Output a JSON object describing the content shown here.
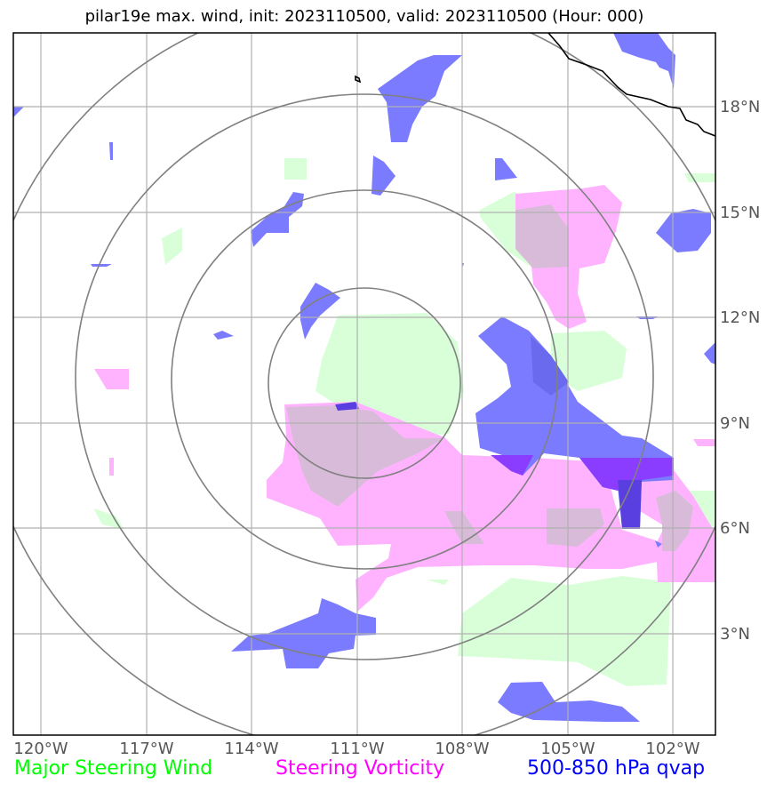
{
  "title": "pilar19e max. wind, init: 2023110500, valid: 2023110500 (Hour: 000)",
  "lon_ticks": [
    "120°W",
    "117°W",
    "114°W",
    "111°W",
    "108°W",
    "105°W",
    "102°W"
  ],
  "lat_ticks": [
    "18°N",
    "15°N",
    "12°N",
    "9°N",
    "6°N",
    "3°N"
  ],
  "legend": {
    "wind": "Major Steering Wind",
    "vorticity": "Steering Vorticity",
    "qvap": "500-850 hPa qvap"
  },
  "colors": {
    "wind": "#00ff00",
    "vorticity": "#ff00ff",
    "qvap": "#0000ff",
    "wind_fill": "#d9ffd9",
    "vorticity_fill": "#ffb3ff",
    "qvap_fill": "#7b7bff",
    "grid": "#b0b0b0",
    "rings": "#808080"
  },
  "map": {
    "extent": {
      "lon": [
        -120.8,
        -100.8
      ],
      "lat": [
        0,
        20
      ]
    },
    "center": {
      "lon": -110.9,
      "lat": 10.1
    },
    "ring_radii_deg": [
      2.7,
      5.5,
      8.1
    ]
  }
}
